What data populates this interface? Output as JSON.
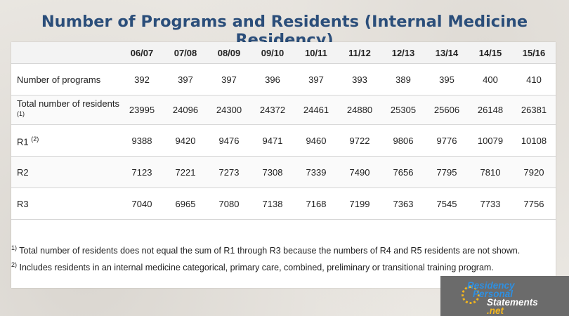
{
  "title": "Number of Programs and Residents (Internal Medicine Residency)",
  "table": {
    "years": [
      "06/07",
      "07/08",
      "08/09",
      "09/10",
      "10/11",
      "11/12",
      "12/13",
      "13/14",
      "14/15",
      "15/16"
    ],
    "rows": [
      {
        "label": "Number of programs",
        "sup": "",
        "values": [
          "392",
          "397",
          "397",
          "396",
          "397",
          "393",
          "389",
          "395",
          "400",
          "410"
        ]
      },
      {
        "label": "Total number of residents",
        "sup": "(1)",
        "values": [
          "23995",
          "24096",
          "24300",
          "24372",
          "24461",
          "24880",
          "25305",
          "25606",
          "26148",
          "26381"
        ]
      },
      {
        "label": "R1",
        "sup": "(2)",
        "values": [
          "9388",
          "9420",
          "9476",
          "9471",
          "9460",
          "9722",
          "9806",
          "9776",
          "10079",
          "10108"
        ]
      },
      {
        "label": "R2",
        "sup": "",
        "values": [
          "7123",
          "7221",
          "7273",
          "7308",
          "7339",
          "7490",
          "7656",
          "7795",
          "7810",
          "7920"
        ]
      },
      {
        "label": "R3",
        "sup": "",
        "values": [
          "7040",
          "6965",
          "7080",
          "7138",
          "7168",
          "7199",
          "7363",
          "7545",
          "7733",
          "7756"
        ]
      }
    ]
  },
  "notes": [
    {
      "mark": "1)",
      "text": " Total number of residents does not equal the sum of R1 through R3 because the numbers of R4 and R5 residents are not shown."
    },
    {
      "mark": "2)",
      "text": " Includes residents in an internal medicine categorical, primary care, combined, preliminary or transitional training program."
    }
  ],
  "logo": {
    "line1": "Residency",
    "line2": "Personal",
    "line3": "Statements",
    "line3_suffix": ".net"
  }
}
